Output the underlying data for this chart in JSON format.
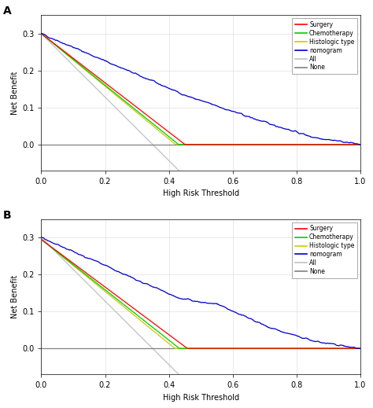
{
  "xlabel": "High Risk Threshold",
  "ylabel": "Net Benefit",
  "xlim": [
    0.0,
    1.0
  ],
  "ylim": [
    -0.07,
    0.35
  ],
  "yticks": [
    0.0,
    0.1,
    0.2,
    0.3
  ],
  "xticks": [
    0.0,
    0.2,
    0.4,
    0.6,
    0.8,
    1.0
  ],
  "legend_labels": [
    "Surgery",
    "Chemotherapy",
    "Histologic type",
    "nomogram",
    "All",
    "None"
  ],
  "colors": {
    "surgery": "#FF0000",
    "chemo": "#00CC00",
    "histologic": "#CCCC00",
    "nomogram": "#0000CC",
    "all": "#C0C0C0",
    "none": "#808080"
  },
  "background": "#FFFFFF",
  "grid_color": "#E0E0E0",
  "panel_labels": [
    "A",
    "B"
  ]
}
